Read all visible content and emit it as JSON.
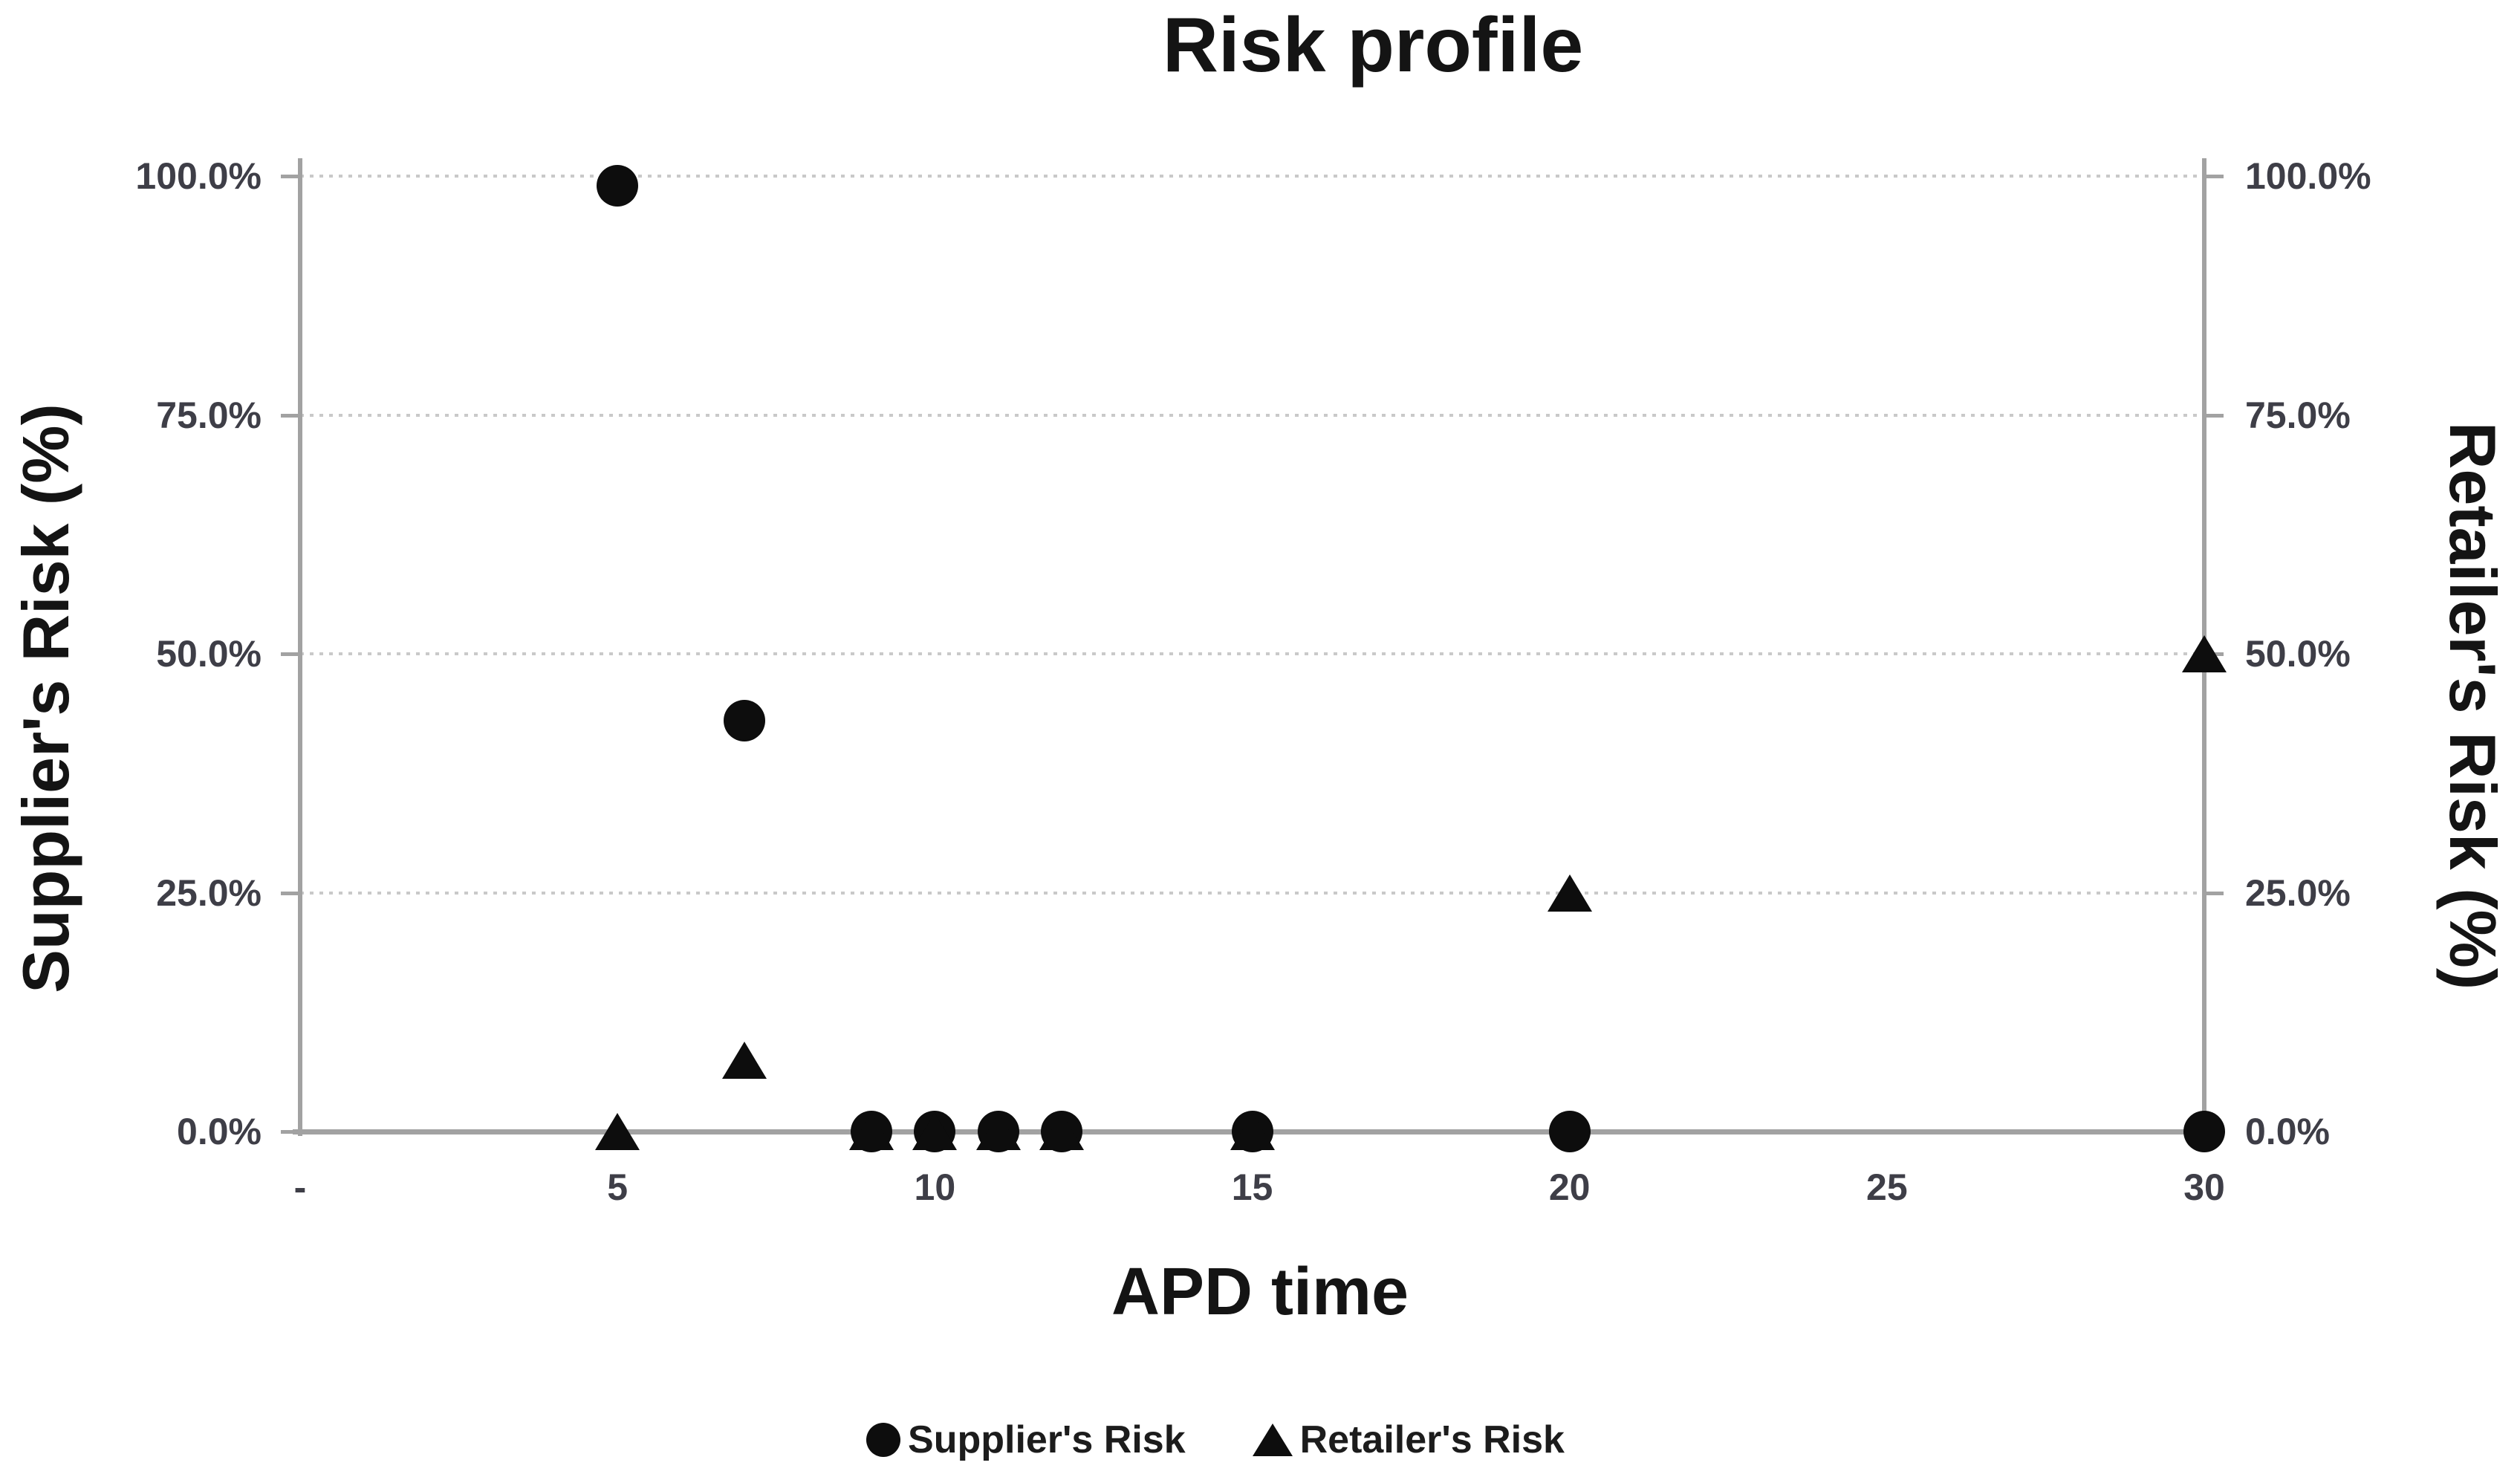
{
  "chart_data": {
    "type": "scatter",
    "title": "Risk profile",
    "xlabel": "APD time",
    "ylabel_left": "Supplier's Risk (%)",
    "ylabel_right": "Retailer's Risk (%)",
    "x_tick_labels": [
      "-",
      "5",
      "10",
      "15",
      "20",
      "25",
      "30"
    ],
    "x_tick_values": [
      0,
      5,
      10,
      15,
      20,
      25,
      30
    ],
    "y_tick_labels": [
      "0.0%",
      "25.0%",
      "50.0%",
      "75.0%",
      "100.0%"
    ],
    "y_tick_values": [
      0,
      25,
      50,
      75,
      100
    ],
    "xlim": [
      0,
      30
    ],
    "ylim": [
      0,
      100
    ],
    "grid": "horizontal dotted gridlines at 25% steps",
    "legend_position": "bottom-center",
    "series": [
      {
        "name": "Supplier's Risk",
        "marker": "circle",
        "axis": "left",
        "x": [
          5,
          7,
          9,
          10,
          11,
          12,
          15,
          20,
          30
        ],
        "y_percent": [
          99,
          43,
          0,
          0,
          0,
          0,
          0,
          0,
          0
        ]
      },
      {
        "name": "Retailer's Risk",
        "marker": "triangle",
        "axis": "right",
        "x": [
          5,
          7,
          9,
          10,
          11,
          12,
          15,
          20,
          30
        ],
        "y_percent": [
          0,
          7.5,
          0,
          0,
          0,
          0,
          0,
          25,
          50
        ]
      }
    ]
  },
  "colors": {
    "marker": "#0d0d0d",
    "axis_line": "#a2a2a2",
    "gridline": "#c9c9c9",
    "tick_label": "#3e3e47",
    "text": "#141414",
    "background": "#ffffff"
  }
}
